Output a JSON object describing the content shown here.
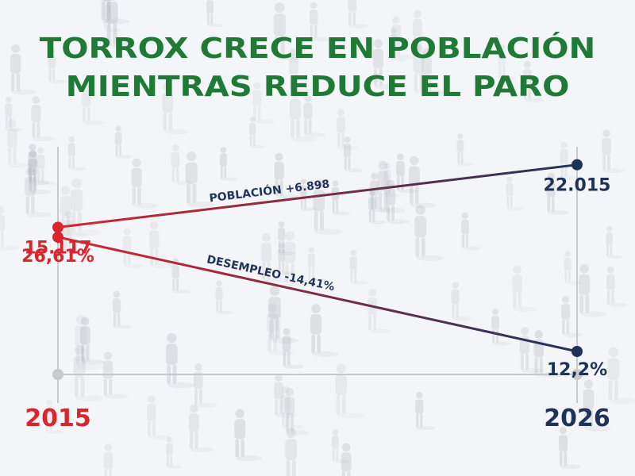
{
  "title_lines": [
    "TORROX CRECE EN POBLACIÓN",
    "MIENTRAS REDUCE EL PARO"
  ],
  "colors": {
    "title": "#1e7a35",
    "start": "#d9252e",
    "end": "#1f3358",
    "axis": "#c8c9cc"
  },
  "chart_data": {
    "type": "line",
    "x": [
      "2015",
      "2026"
    ],
    "series": [
      {
        "values": [
          15117,
          22015
        ],
        "value_labels": [
          "15.117",
          "22.015"
        ],
        "annotation": "POBLACIÓN +6.898"
      },
      {
        "values": [
          26.61,
          12.2
        ],
        "value_labels": [
          "26,61%",
          "12,2%"
        ],
        "annotation": "DESEMPLEO -14,41%"
      }
    ],
    "grid": false
  }
}
